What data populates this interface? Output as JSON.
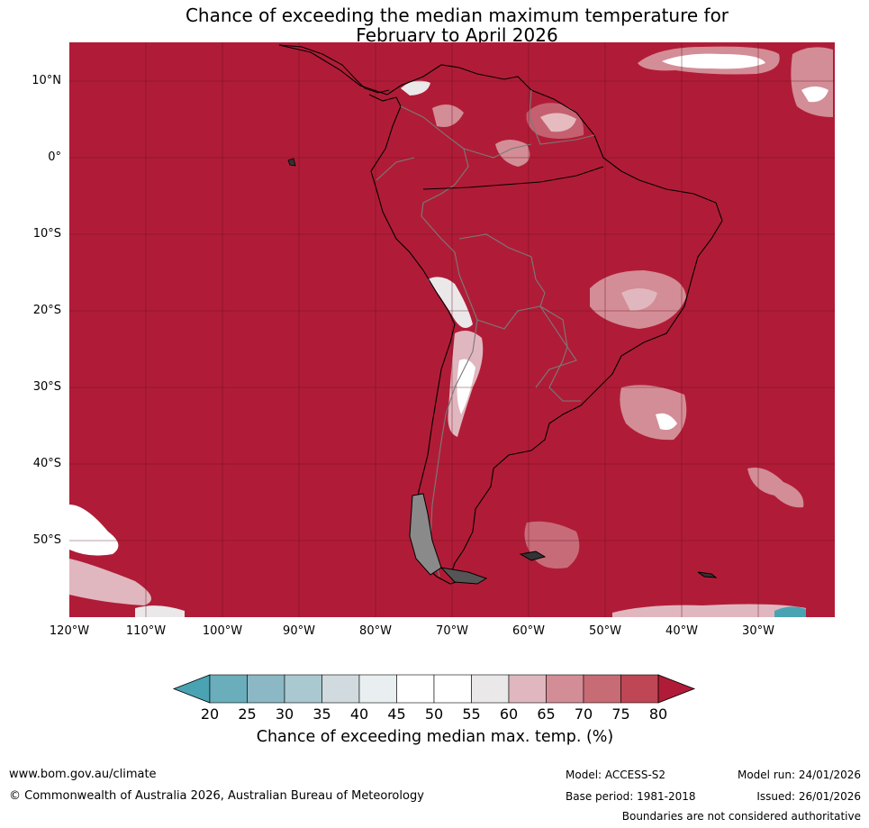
{
  "title": {
    "line1": "Chance of exceeding the median maximum temperature for",
    "line2": "February to April 2026"
  },
  "map": {
    "region": "South America",
    "lat_labels": [
      "10°N",
      "0°",
      "10°S",
      "20°S",
      "30°S",
      "40°S",
      "50°S"
    ],
    "lon_labels": [
      "120°W",
      "110°W",
      "100°W",
      "90°W",
      "80°W",
      "70°W",
      "60°W",
      "50°W",
      "40°W",
      "30°W"
    ],
    "background_category": "80"
  },
  "colorbar": {
    "ticks": [
      "20",
      "25",
      "30",
      "35",
      "40",
      "45",
      "50",
      "55",
      "60",
      "65",
      "70",
      "75",
      "80"
    ],
    "colors": [
      "#4aa3b3",
      "#6aadbb",
      "#8bb8c4",
      "#a9c8cf",
      "#d1dade",
      "#e9eff1",
      "#ffffff",
      "#ffffff",
      "#ebe8ea",
      "#e0b7bf",
      "#d38d96",
      "#c76b75",
      "#bf4654",
      "#b01c37"
    ],
    "label": "Chance of exceeding median max. temp. (%)"
  },
  "footer": {
    "website": "www.bom.gov.au/climate",
    "copyright": "© Commonwealth of Australia 2026, Australian Bureau of Meteorology",
    "model": "Model: ACCESS-S2",
    "base_period": "Base period: 1981-2018",
    "model_run": "Model run: 24/01/2026",
    "issued": "Issued: 26/01/2026",
    "disclaimer": "Boundaries are not considered authoritative"
  }
}
